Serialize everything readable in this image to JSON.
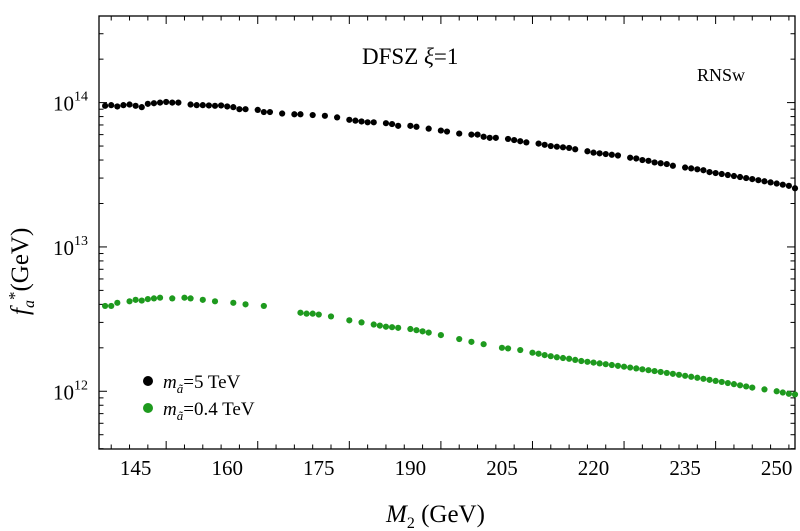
{
  "chart_data": {
    "type": "scatter",
    "title_prefix": "DFSZ ",
    "title_greek": "ξ",
    "title_suffix": "=1",
    "corner_label": "RNSw",
    "xlabel_main": "M",
    "xlabel_sub": "2",
    "xlabel_unit": " (GeV)",
    "ylabel_main": "f",
    "ylabel_sub": "a",
    "ylabel_sup": "*",
    "ylabel_unit": "(GeV)",
    "xlim": [
      139,
      253
    ],
    "ylim_log10": [
      11.6,
      14.6
    ],
    "x_ticks": [
      {
        "value": 145,
        "label": "145"
      },
      {
        "value": 160,
        "label": "160"
      },
      {
        "value": 175,
        "label": "175"
      },
      {
        "value": 190,
        "label": "190"
      },
      {
        "value": 205,
        "label": "205"
      },
      {
        "value": 220,
        "label": "220"
      },
      {
        "value": 235,
        "label": "235"
      },
      {
        "value": 250,
        "label": "250"
      }
    ],
    "y_ticks": [
      {
        "exp": 12,
        "base": "10",
        "sup": "12"
      },
      {
        "exp": 13,
        "base": "10",
        "sup": "13"
      },
      {
        "exp": 14,
        "base": "10",
        "sup": "14"
      }
    ],
    "series": [
      {
        "name": "m_ã=5 TeV",
        "legend_symbol": "m",
        "legend_sub": "ã",
        "legend_value": "=5 TeV",
        "color": "#000000",
        "x": [
          140,
          141,
          142,
          143,
          144,
          145,
          146,
          147,
          148,
          149,
          150,
          151,
          152,
          154,
          155,
          156,
          157,
          158,
          159,
          160,
          161,
          162,
          163,
          165,
          166,
          167,
          169,
          171,
          172,
          174,
          176,
          178,
          180,
          181,
          182,
          183,
          184,
          186,
          187,
          188,
          190,
          191,
          193,
          195,
          196,
          198,
          200,
          201,
          202,
          203,
          204,
          206,
          207,
          208,
          209,
          211,
          212,
          213,
          214,
          215,
          216,
          217,
          219,
          220,
          221,
          222,
          223,
          224,
          226,
          227,
          228,
          229,
          230,
          231,
          232,
          233,
          235,
          236,
          237,
          238,
          239,
          240,
          241,
          242,
          243,
          244,
          245,
          246,
          247,
          248,
          249,
          250,
          251,
          252,
          253
        ],
        "y": [
          95000000000000.0,
          96000000000000.0,
          94000000000000.0,
          96000000000000.0,
          97000000000000.0,
          95000000000000.0,
          93000000000000.0,
          98000000000000.0,
          99000000000000.0,
          100000000000000.0,
          101000000000000.0,
          100000000000000.0,
          100000000000000.0,
          97000000000000.0,
          96000000000000.0,
          96000000000000.0,
          95500000000000.0,
          95000000000000.0,
          95500000000000.0,
          94000000000000.0,
          93000000000000.0,
          90000000000000.0,
          90000000000000.0,
          89000000000000.0,
          86000000000000.0,
          86000000000000.0,
          84000000000000.0,
          83000000000000.0,
          83000000000000.0,
          82000000000000.0,
          81000000000000.0,
          79000000000000.0,
          76000000000000.0,
          75000000000000.0,
          74000000000000.0,
          73000000000000.0,
          73000000000000.0,
          72000000000000.0,
          71000000000000.0,
          69000000000000.0,
          69000000000000.0,
          68000000000000.0,
          66000000000000.0,
          64000000000000.0,
          63000000000000.0,
          61000000000000.0,
          60000000000000.0,
          60000000000000.0,
          58000000000000.0,
          57000000000000.0,
          57000000000000.0,
          56000000000000.0,
          55000000000000.0,
          54000000000000.0,
          53000000000000.0,
          52000000000000.0,
          51000000000000.0,
          50000000000000.0,
          49500000000000.0,
          49000000000000.0,
          48500000000000.0,
          47500000000000.0,
          46000000000000.0,
          45000000000000.0,
          44500000000000.0,
          44000000000000.0,
          43500000000000.0,
          43000000000000.0,
          41500000000000.0,
          41000000000000.0,
          40000000000000.0,
          39500000000000.0,
          38500000000000.0,
          38000000000000.0,
          37500000000000.0,
          36500000000000.0,
          35500000000000.0,
          35000000000000.0,
          34500000000000.0,
          34000000000000.0,
          33000000000000.0,
          32500000000000.0,
          32000000000000.0,
          31500000000000.0,
          31000000000000.0,
          30500000000000.0,
          30000000000000.0,
          29500000000000.0,
          29000000000000.0,
          28500000000000.0,
          28000000000000.0,
          27500000000000.0,
          27000000000000.0,
          26500000000000.0,
          25500000000000.0
        ]
      },
      {
        "name": "m_ã=0.4 TeV",
        "legend_symbol": "m",
        "legend_sub": "ã",
        "legend_value": "=0.4 TeV",
        "color": "#1e9a1e",
        "x": [
          140,
          141,
          142,
          144,
          145,
          146,
          147,
          148,
          149,
          151,
          153,
          154,
          156,
          158,
          161,
          163,
          166,
          172,
          173,
          174,
          175,
          177,
          180,
          182,
          184,
          185,
          186,
          187,
          188,
          190,
          191,
          192,
          193,
          195,
          198,
          200,
          202,
          205,
          206,
          208,
          210,
          211,
          212,
          213,
          214,
          215,
          216,
          217,
          218,
          219,
          220,
          221,
          222,
          223,
          224,
          225,
          226,
          227,
          228,
          229,
          230,
          231,
          232,
          233,
          234,
          235,
          236,
          237,
          238,
          239,
          240,
          241,
          242,
          243,
          244,
          245,
          246,
          248,
          250,
          251,
          252,
          253
        ],
        "y": [
          3900000000000.0,
          3900000000000.0,
          4100000000000.0,
          4200000000000.0,
          4300000000000.0,
          4250000000000.0,
          4350000000000.0,
          4400000000000.0,
          4450000000000.0,
          4400000000000.0,
          4450000000000.0,
          4400000000000.0,
          4300000000000.0,
          4200000000000.0,
          4100000000000.0,
          4000000000000.0,
          3900000000000.0,
          3500000000000.0,
          3450000000000.0,
          3450000000000.0,
          3400000000000.0,
          3300000000000.0,
          3100000000000.0,
          3000000000000.0,
          2900000000000.0,
          2850000000000.0,
          2800000000000.0,
          2780000000000.0,
          2750000000000.0,
          2700000000000.0,
          2650000000000.0,
          2600000000000.0,
          2550000000000.0,
          2450000000000.0,
          2300000000000.0,
          2200000000000.0,
          2120000000000.0,
          2000000000000.0,
          1980000000000.0,
          1930000000000.0,
          1850000000000.0,
          1820000000000.0,
          1780000000000.0,
          1750000000000.0,
          1720000000000.0,
          1700000000000.0,
          1680000000000.0,
          1650000000000.0,
          1620000000000.0,
          1600000000000.0,
          1580000000000.0,
          1560000000000.0,
          1540000000000.0,
          1520000000000.0,
          1500000000000.0,
          1480000000000.0,
          1460000000000.0,
          1440000000000.0,
          1420000000000.0,
          1400000000000.0,
          1380000000000.0,
          1360000000000.0,
          1340000000000.0,
          1320000000000.0,
          1300000000000.0,
          1280000000000.0,
          1260000000000.0,
          1240000000000.0,
          1220000000000.0,
          1200000000000.0,
          1180000000000.0,
          1160000000000.0,
          1140000000000.0,
          1120000000000.0,
          1100000000000.0,
          1080000000000.0,
          1060000000000.0,
          1030000000000.0,
          1000000000000.0,
          980000000000.0,
          960000000000.0,
          950000000000.0
        ]
      }
    ]
  }
}
